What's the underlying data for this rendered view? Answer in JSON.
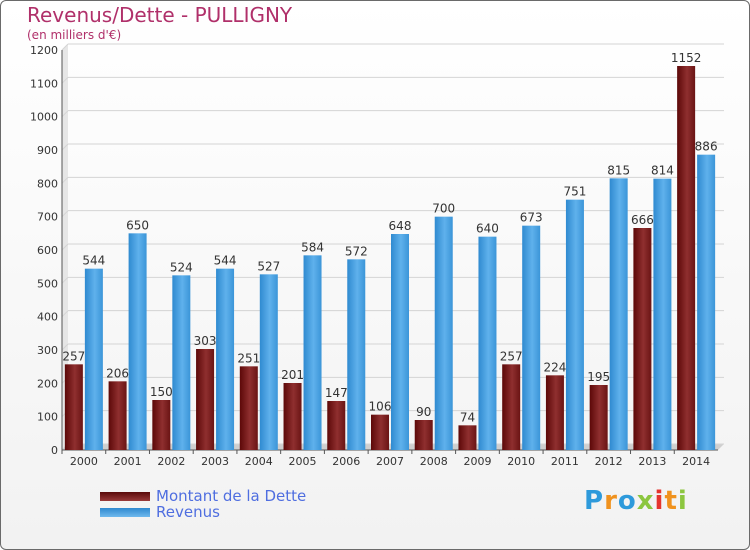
{
  "title": "Revenus/Dette - PULLIGNY",
  "subtitle": "(en milliers d'€)",
  "logo": {
    "letters": [
      "P",
      "r",
      "o",
      "x",
      "i",
      "t",
      "i"
    ],
    "colors": [
      "#2e9adb",
      "#f0921e",
      "#2e9adb",
      "#8cc63f",
      "#e5352e",
      "#f0921e",
      "#8cc63f"
    ]
  },
  "chart_data": {
    "type": "bar",
    "categories": [
      "2000",
      "2001",
      "2002",
      "2003",
      "2004",
      "2005",
      "2006",
      "2007",
      "2008",
      "2009",
      "2010",
      "2011",
      "2012",
      "2013",
      "2014"
    ],
    "series": [
      {
        "name": "Montant de la Dette",
        "color": "#7a1c1c",
        "values": [
          257,
          206,
          150,
          303,
          251,
          201,
          147,
          106,
          90,
          74,
          257,
          224,
          195,
          666,
          1152
        ]
      },
      {
        "name": "Revenus",
        "color": "#4aa3e2",
        "values": [
          544,
          650,
          524,
          544,
          527,
          584,
          572,
          648,
          700,
          640,
          673,
          751,
          815,
          814,
          886
        ]
      }
    ],
    "ylim": [
      0,
      1200
    ],
    "yticks": [
      0,
      100,
      200,
      300,
      400,
      500,
      600,
      700,
      800,
      900,
      1000,
      1100,
      1200
    ],
    "grid": true,
    "legend_position": "bottom-left"
  }
}
